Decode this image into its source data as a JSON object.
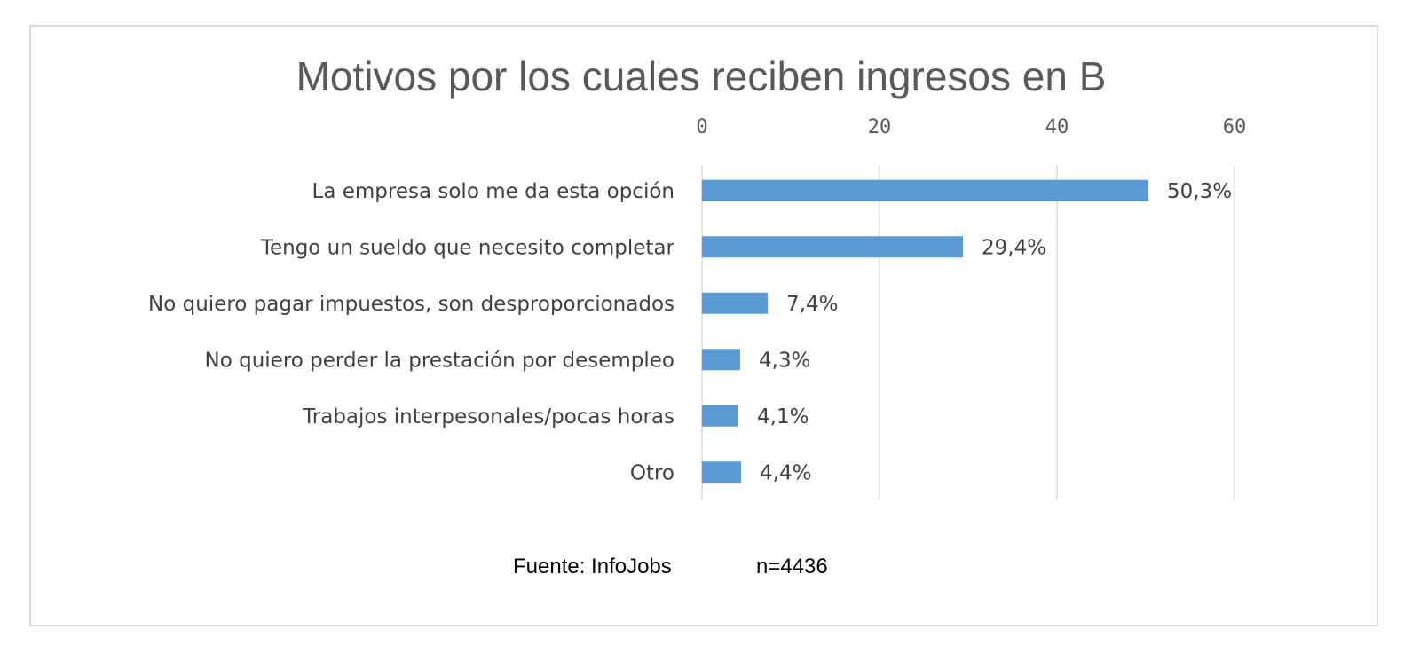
{
  "chart_data": {
    "type": "bar",
    "orientation": "horizontal",
    "title": "Motivos por los cuales reciben ingresos en B",
    "categories": [
      "La empresa solo me da esta opción",
      "Tengo un sueldo que necesito completar",
      "No quiero pagar impuestos, son desproporcionados",
      "No quiero perder la prestación por desempleo",
      "Trabajos interpesonales/pocas horas",
      "Otro"
    ],
    "values": [
      50.3,
      29.4,
      7.4,
      4.3,
      4.1,
      4.4
    ],
    "data_labels": [
      "50,3%",
      "29,4%",
      "7,4%",
      "4,3%",
      "4,1%",
      "4,4%"
    ],
    "xlim": [
      0,
      60
    ],
    "xticks": [
      0,
      20,
      40,
      60
    ],
    "xtick_labels": [
      "0",
      "20",
      "40",
      "60"
    ],
    "axis_position": "top",
    "grid": true,
    "bar_color": "#5b9bd5",
    "xlabel": "",
    "ylabel": ""
  },
  "footer": {
    "source": "Fuente: InfoJobs",
    "sample": "n=4436"
  }
}
